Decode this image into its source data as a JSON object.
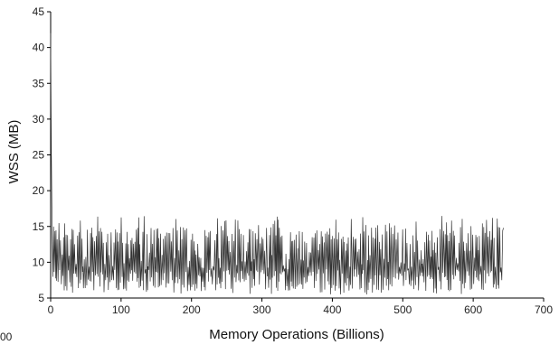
{
  "chart_data": {
    "type": "line",
    "xlabel": "Memory Operations (Billions)",
    "ylabel": "WSS (MB)",
    "xlim": [
      0,
      700
    ],
    "ylim": [
      5,
      45
    ],
    "xticks": [
      "0",
      "100",
      "200",
      "300",
      "400",
      "500",
      "600",
      "700"
    ],
    "yticks": [
      "5",
      "10",
      "15",
      "20",
      "25",
      "30",
      "35",
      "40",
      "45"
    ],
    "grid": false,
    "legend": "none",
    "stray_label": "00",
    "line_color": "#333333",
    "series": [
      {
        "name": "",
        "x_range": [
          0,
          643
        ],
        "initial_spike": [
          {
            "x": 0,
            "y": 42
          },
          {
            "x": 1,
            "y": 25
          },
          {
            "x": 2,
            "y": 15
          }
        ],
        "band": {
          "low_min": 5.5,
          "low_typical": 7,
          "high_typical": 14,
          "high_max": 16.5
        },
        "end_x": 643,
        "end_y": 14.8
      }
    ]
  }
}
